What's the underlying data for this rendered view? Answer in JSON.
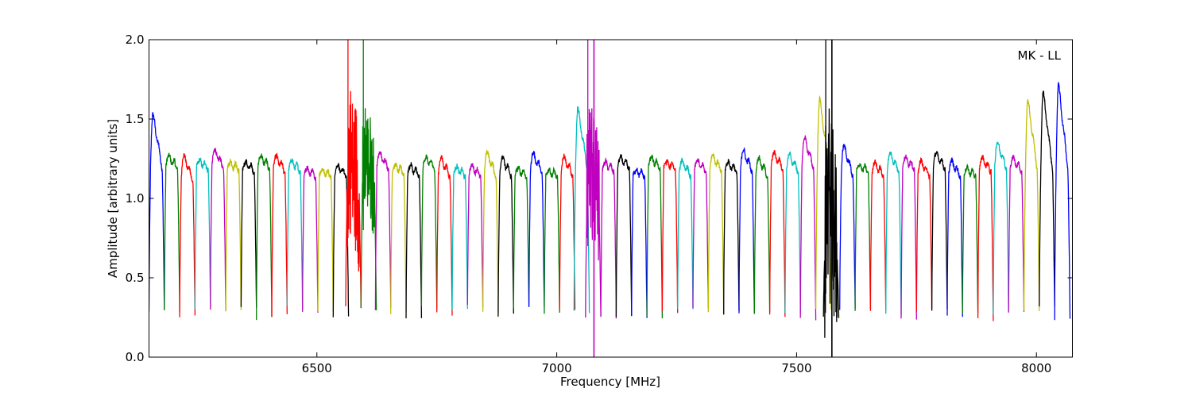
{
  "chart_data": {
    "type": "line",
    "title": "",
    "annotation": "MK - LL",
    "xlabel": "Frequency [MHz]",
    "ylabel": "Amplitude [arbitrary units]",
    "xlim": [
      6150,
      8075
    ],
    "ylim": [
      0.0,
      2.0
    ],
    "x_ticks": [
      6500,
      7000,
      7500,
      8000
    ],
    "x_tick_labels": [
      "6500",
      "7000",
      "7500",
      "8000"
    ],
    "y_ticks": [
      0.0,
      0.5,
      1.0,
      1.5,
      2.0
    ],
    "y_tick_labels": [
      "0.0",
      "0.5",
      "1.0",
      "1.5",
      "2.0"
    ],
    "grid": false,
    "legend": "none",
    "colors": [
      "#0000ff",
      "#008000",
      "#ff0000",
      "#00bfbf",
      "#bf00bf",
      "#bfbf00",
      "#000000"
    ],
    "channel_width_mhz": 32,
    "first_channel_start_mhz": 6150,
    "series": [
      {
        "start": 6150,
        "color": "#0000ff",
        "level": 1.2,
        "peak": 1.53
      },
      {
        "start": 6182,
        "color": "#008000",
        "level": 1.2,
        "peak": 1.26
      },
      {
        "start": 6214,
        "color": "#ff0000",
        "level": 1.12,
        "peak": 1.27
      },
      {
        "start": 6246,
        "color": "#00bfbf",
        "level": 1.2,
        "peak": 1.23
      },
      {
        "start": 6278,
        "color": "#bf00bf",
        "level": 1.2,
        "peak": 1.3
      },
      {
        "start": 6310,
        "color": "#bfbf00",
        "level": 1.19,
        "peak": 1.22
      },
      {
        "start": 6342,
        "color": "#000000",
        "level": 1.18,
        "peak": 1.22
      },
      {
        "start": 6374,
        "color": "#008000",
        "level": 1.2,
        "peak": 1.26
      },
      {
        "start": 6406,
        "color": "#ff0000",
        "level": 1.18,
        "peak": 1.26
      },
      {
        "start": 6438,
        "color": "#00bfbf",
        "level": 1.18,
        "peak": 1.23
      },
      {
        "start": 6470,
        "color": "#bf00bf",
        "level": 1.15,
        "peak": 1.18
      },
      {
        "start": 6502,
        "color": "#bfbf00",
        "level": 1.15,
        "peak": 1.17
      },
      {
        "start": 6534,
        "color": "#000000",
        "level": 1.15,
        "peak": 1.2
      },
      {
        "start": 6560,
        "color": "#ff0000",
        "level": 1.05,
        "peak": 1.27,
        "spike": 2.0,
        "noise": 0.5
      },
      {
        "start": 6592,
        "color": "#008000",
        "level": 1.1,
        "peak": 1.3,
        "spike": 2.0,
        "noise": 0.35
      },
      {
        "start": 6622,
        "color": "#bf00bf",
        "level": 1.2,
        "peak": 1.28
      },
      {
        "start": 6654,
        "color": "#bfbf00",
        "level": 1.17,
        "peak": 1.2
      },
      {
        "start": 6686,
        "color": "#000000",
        "level": 1.15,
        "peak": 1.2
      },
      {
        "start": 6718,
        "color": "#008000",
        "level": 1.2,
        "peak": 1.25
      },
      {
        "start": 6750,
        "color": "#ff0000",
        "level": 1.15,
        "peak": 1.25
      },
      {
        "start": 6782,
        "color": "#00bfbf",
        "level": 1.15,
        "peak": 1.19
      },
      {
        "start": 6814,
        "color": "#bf00bf",
        "level": 1.15,
        "peak": 1.2
      },
      {
        "start": 6846,
        "color": "#bfbf00",
        "level": 1.15,
        "peak": 1.29
      },
      {
        "start": 6878,
        "color": "#000000",
        "level": 1.15,
        "peak": 1.25
      },
      {
        "start": 6910,
        "color": "#008000",
        "level": 1.15,
        "peak": 1.18
      },
      {
        "start": 6942,
        "color": "#0000ff",
        "level": 1.17,
        "peak": 1.28
      },
      {
        "start": 6974,
        "color": "#008000",
        "level": 1.15,
        "peak": 1.17
      },
      {
        "start": 7006,
        "color": "#ff0000",
        "level": 1.15,
        "peak": 1.26
      },
      {
        "start": 7036,
        "color": "#00bfbf",
        "level": 1.2,
        "peak": 1.57
      },
      {
        "start": 7060,
        "color": "#bf00bf",
        "level": 1.0,
        "peak": 1.2,
        "spike": 2.0,
        "noise": 0.45
      },
      {
        "start": 7092,
        "color": "#bf00bf",
        "level": 1.18,
        "peak": 1.22
      },
      {
        "start": 7124,
        "color": "#000000",
        "level": 1.2,
        "peak": 1.25
      },
      {
        "start": 7156,
        "color": "#0000ff",
        "level": 1.15,
        "peak": 1.17
      },
      {
        "start": 7188,
        "color": "#008000",
        "level": 1.2,
        "peak": 1.25
      },
      {
        "start": 7220,
        "color": "#ff0000",
        "level": 1.2,
        "peak": 1.22
      },
      {
        "start": 7252,
        "color": "#00bfbf",
        "level": 1.15,
        "peak": 1.23
      },
      {
        "start": 7284,
        "color": "#bf00bf",
        "level": 1.18,
        "peak": 1.23
      },
      {
        "start": 7316,
        "color": "#bfbf00",
        "level": 1.18,
        "peak": 1.27
      },
      {
        "start": 7348,
        "color": "#000000",
        "level": 1.18,
        "peak": 1.22
      },
      {
        "start": 7380,
        "color": "#0000ff",
        "level": 1.18,
        "peak": 1.3
      },
      {
        "start": 7412,
        "color": "#008000",
        "level": 1.15,
        "peak": 1.25
      },
      {
        "start": 7444,
        "color": "#ff0000",
        "level": 1.2,
        "peak": 1.28
      },
      {
        "start": 7476,
        "color": "#00bfbf",
        "level": 1.18,
        "peak": 1.27
      },
      {
        "start": 7508,
        "color": "#bf00bf",
        "level": 1.2,
        "peak": 1.38
      },
      {
        "start": 7540,
        "color": "#bfbf00",
        "level": 1.2,
        "peak": 1.63
      },
      {
        "start": 7556,
        "color": "#000000",
        "level": 0.7,
        "peak": 1.05,
        "spike": 2.0,
        "noise": 0.6
      },
      {
        "start": 7590,
        "color": "#0000ff",
        "level": 1.15,
        "peak": 1.33
      },
      {
        "start": 7622,
        "color": "#008000",
        "level": 1.18,
        "peak": 1.2
      },
      {
        "start": 7654,
        "color": "#ff0000",
        "level": 1.15,
        "peak": 1.22
      },
      {
        "start": 7686,
        "color": "#00bfbf",
        "level": 1.18,
        "peak": 1.28
      },
      {
        "start": 7718,
        "color": "#bf00bf",
        "level": 1.2,
        "peak": 1.25
      },
      {
        "start": 7750,
        "color": "#ff0000",
        "level": 1.15,
        "peak": 1.23
      },
      {
        "start": 7782,
        "color": "#000000",
        "level": 1.2,
        "peak": 1.28
      },
      {
        "start": 7814,
        "color": "#0000ff",
        "level": 1.15,
        "peak": 1.23
      },
      {
        "start": 7846,
        "color": "#008000",
        "level": 1.15,
        "peak": 1.18
      },
      {
        "start": 7878,
        "color": "#ff0000",
        "level": 1.18,
        "peak": 1.25
      },
      {
        "start": 7910,
        "color": "#00bfbf",
        "level": 1.2,
        "peak": 1.35
      },
      {
        "start": 7942,
        "color": "#bf00bf",
        "level": 1.18,
        "peak": 1.25
      },
      {
        "start": 7974,
        "color": "#bfbf00",
        "level": 1.2,
        "peak": 1.62
      },
      {
        "start": 8006,
        "color": "#000000",
        "level": 1.2,
        "peak": 1.67
      },
      {
        "start": 8038,
        "color": "#0000ff",
        "level": 1.2,
        "peak": 1.72
      }
    ]
  }
}
